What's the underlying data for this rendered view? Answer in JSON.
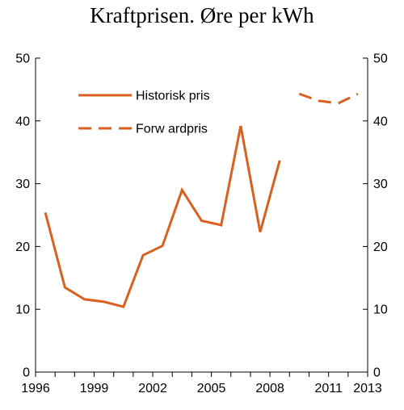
{
  "chart_data": {
    "type": "line",
    "title": "Kraftprisen. Øre per kWh",
    "xlabel": "",
    "ylabel": "",
    "xlim": [
      1996,
      2013
    ],
    "ylim": [
      0,
      50
    ],
    "x_ticks": [
      "1996",
      "1999",
      "2002",
      "2005",
      "2008",
      "2011",
      "2013"
    ],
    "y_ticks_left": [
      "0",
      "10",
      "20",
      "30",
      "40",
      "50"
    ],
    "y_ticks_right": [
      "0",
      "10",
      "20",
      "30",
      "40",
      "50"
    ],
    "grid": false,
    "legend_position": "top-left",
    "color": "#D9601E",
    "series": [
      {
        "name": "Historisk pris",
        "style": "solid",
        "x": [
          1996.5,
          1997.5,
          1998.5,
          1999.5,
          2000.5,
          2001.5,
          2002.5,
          2003.5,
          2004.5,
          2005.5,
          2006.5,
          2007.5,
          2008.5
        ],
        "y": [
          25.4,
          13.5,
          11.6,
          11.2,
          10.4,
          18.6,
          20.1,
          29.0,
          24.1,
          23.4,
          39.2,
          22.3,
          33.7
        ]
      },
      {
        "name": "Forw ardpris",
        "style": "dashed",
        "x": [
          2009.5,
          2010.5,
          2011.5,
          2012.5
        ],
        "y": [
          44.3,
          43.2,
          42.8,
          44.3
        ]
      }
    ]
  }
}
